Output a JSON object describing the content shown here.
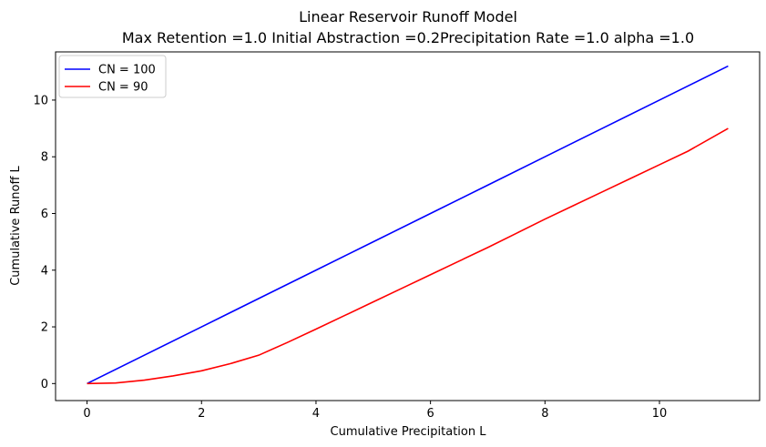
{
  "chart_data": {
    "type": "line",
    "title": "Linear Reservoir Runoff Model",
    "subtitle": "Max Retention =1.0 Initial Abstraction =0.2Precipitation Rate =1.0 alpha =1.0",
    "xlabel": "Cumulative Precipitation L",
    "ylabel": "Cumulative Runoff L",
    "xlim": [
      -0.55,
      11.75
    ],
    "ylim": [
      -0.6,
      11.7
    ],
    "xticks": [
      0,
      2,
      4,
      6,
      8,
      10
    ],
    "yticks": [
      0,
      2,
      4,
      6,
      8,
      10
    ],
    "grid": false,
    "legend_position": "top-left",
    "series": [
      {
        "name": "CN = 100",
        "color": "#0000ff",
        "x": [
          0,
          1,
          2,
          3,
          4,
          5,
          6,
          7,
          8,
          9,
          10,
          11.2
        ],
        "y": [
          0,
          1,
          2,
          3,
          4,
          5,
          6,
          7,
          8,
          9,
          10,
          11.2
        ]
      },
      {
        "name": "CN = 90",
        "color": "#ff0000",
        "x": [
          0,
          0.5,
          1,
          1.5,
          2,
          2.5,
          3,
          3.5,
          4,
          4.5,
          5,
          5.5,
          6,
          6.5,
          7,
          7.5,
          8,
          8.5,
          9,
          9.5,
          10,
          10.5,
          11.2
        ],
        "y": [
          0,
          0.02,
          0.12,
          0.27,
          0.45,
          0.7,
          1.0,
          1.45,
          1.92,
          2.4,
          2.88,
          3.36,
          3.84,
          4.32,
          4.8,
          5.3,
          5.8,
          6.28,
          6.76,
          7.24,
          7.72,
          8.2,
          9.0
        ]
      }
    ]
  }
}
